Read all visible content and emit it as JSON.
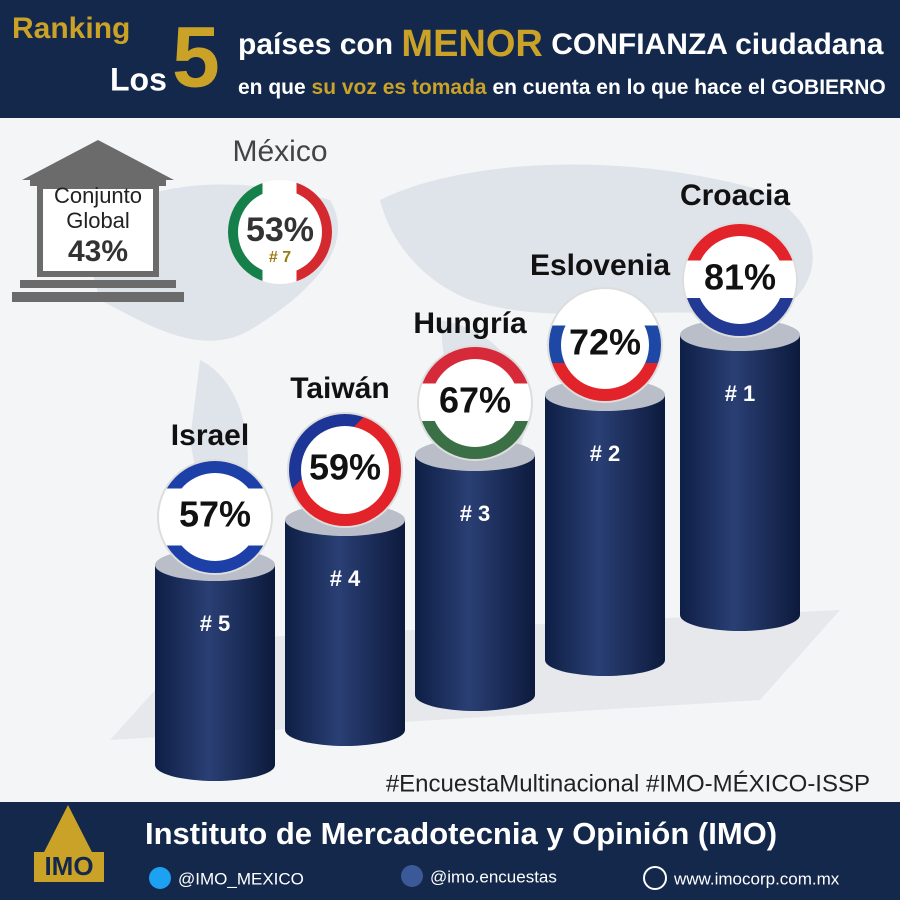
{
  "header": {
    "ranking": "Ranking",
    "los": "Los",
    "number": "5",
    "line1": [
      "países con",
      "MENOR",
      "CONFIANZA ciudadana"
    ],
    "line2": [
      "en que",
      "su voz es tomada",
      "en cuenta en lo que hace el GOBIERNO"
    ]
  },
  "global": {
    "label": [
      "Conjunto",
      "Global"
    ],
    "value": "43%"
  },
  "mexico": {
    "name": "México",
    "value": "53%",
    "rank": "# 7"
  },
  "countries": [
    {
      "name": "Israel",
      "value": "57%",
      "rank": "# 5"
    },
    {
      "name": "Taiwán",
      "value": "59%",
      "rank": "# 4"
    },
    {
      "name": "Hungría",
      "value": "67%",
      "rank": "# 3"
    },
    {
      "name": "Eslovenia",
      "value": "72%",
      "rank": "# 2"
    },
    {
      "name": "Croacia",
      "value": "81%",
      "rank": "# 1"
    }
  ],
  "hashtag": "#EncuestaMultinacional #IMO-MÉXICO-ISSP",
  "footer": {
    "logo": "IMO",
    "institute": "Instituto de Mercadotecnia y Opinión (IMO)",
    "twitter": "@IMO_MEXICO",
    "facebook": "@imo.encuestas",
    "web": "www.imocorp.com.mx"
  }
}
